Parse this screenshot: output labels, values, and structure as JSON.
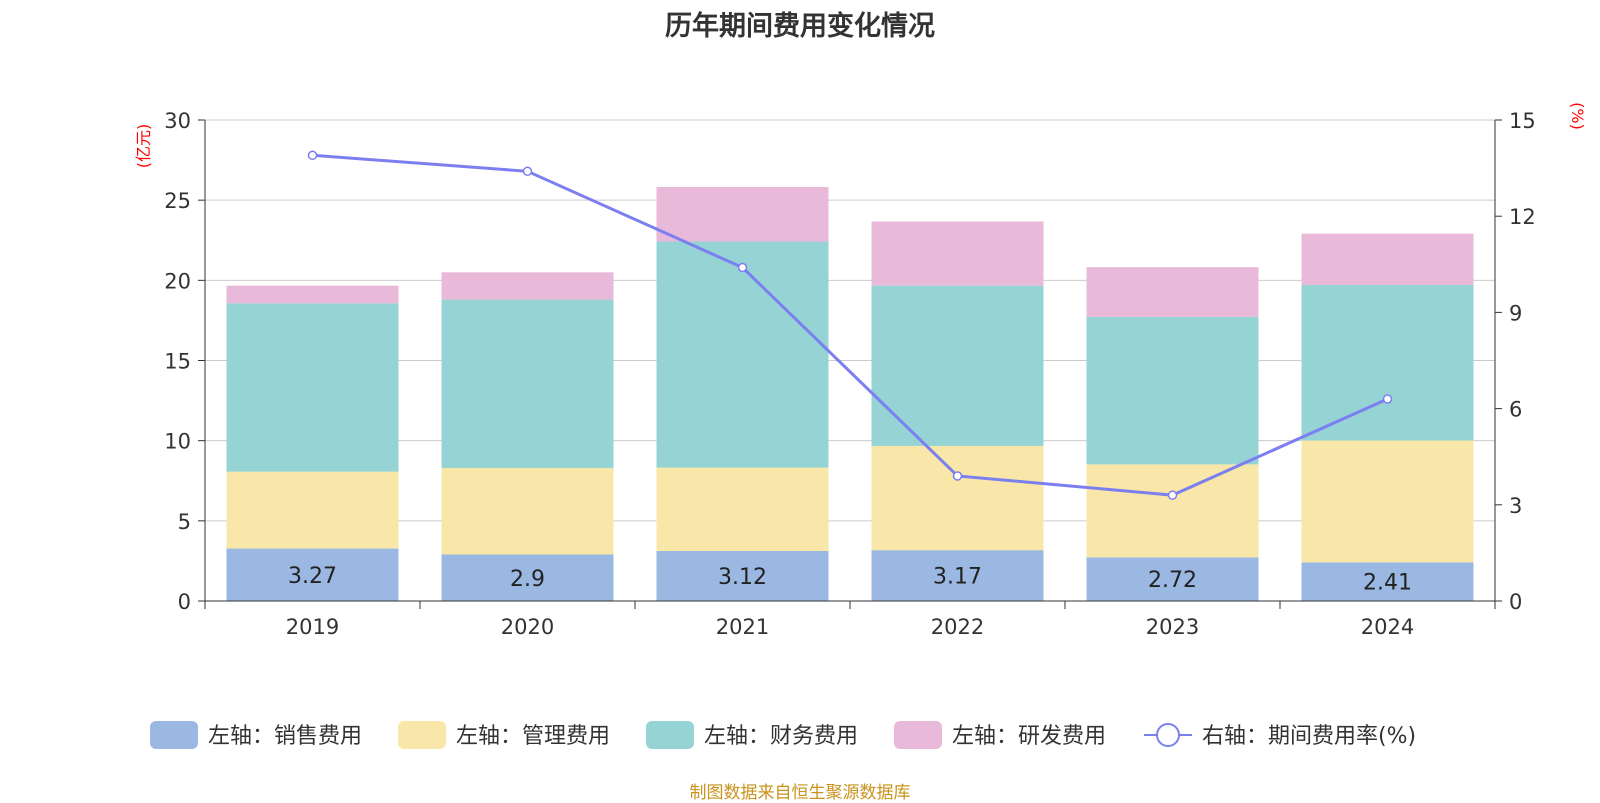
{
  "chart_data": {
    "type": "bar",
    "stacked": true,
    "title": "历年期间费用变化情况",
    "categories": [
      "2019",
      "2020",
      "2021",
      "2022",
      "2023",
      "2024"
    ],
    "left_axis": {
      "unit_label": "(亿元)",
      "ylim": [
        0,
        30
      ],
      "ticks": [
        "0",
        "5",
        "10",
        "15",
        "20",
        "25",
        "30"
      ]
    },
    "right_axis": {
      "unit_label": "(%)",
      "ylim": [
        0,
        15
      ],
      "ticks": [
        "0",
        "3",
        "6",
        "9",
        "12",
        "15"
      ]
    },
    "series": [
      {
        "name": "左轴：销售费用",
        "axis": "left",
        "color": "#9bb8e3",
        "values": [
          3.27,
          2.9,
          3.12,
          3.17,
          2.72,
          2.41
        ],
        "labels": [
          "3.27",
          "2.9",
          "3.12",
          "3.17",
          "2.72",
          "2.41"
        ]
      },
      {
        "name": "左轴：管理费用",
        "axis": "left",
        "color": "#f8e7a8",
        "values": [
          4.8,
          5.4,
          5.2,
          6.5,
          5.8,
          7.6
        ]
      },
      {
        "name": "左轴：财务费用",
        "axis": "left",
        "color": "#96d3d4",
        "values": [
          10.5,
          10.5,
          14.1,
          10.0,
          9.2,
          9.7
        ]
      },
      {
        "name": "左轴：研发费用",
        "axis": "left",
        "color": "#e8b9d8",
        "values": [
          1.1,
          1.7,
          3.4,
          4.0,
          3.1,
          3.2
        ]
      },
      {
        "name": "右轴：期间费用率(%)",
        "axis": "right",
        "type": "line",
        "color": "#7b7ff0",
        "values": [
          13.9,
          13.4,
          10.4,
          3.9,
          3.3,
          6.3
        ]
      }
    ],
    "grid": true,
    "legend_position": "bottom"
  },
  "source_note": {
    "text": "制图数据来自恒生聚源数据库",
    "color": "#c9931a"
  }
}
